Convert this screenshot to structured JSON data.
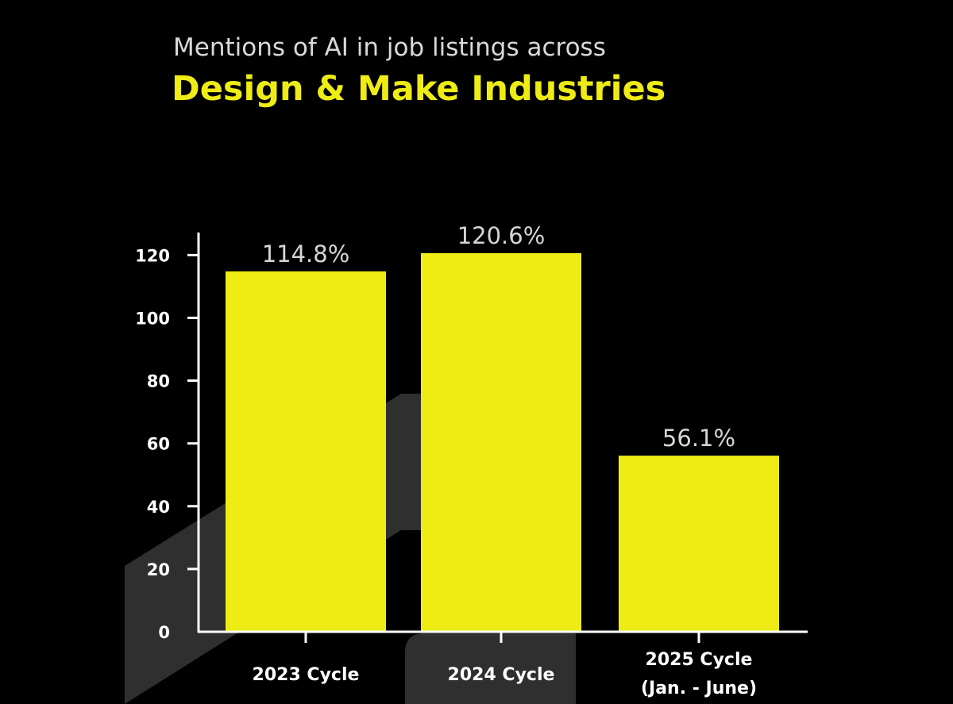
{
  "header": {
    "subtitle": "Mentions of AI in job listings across",
    "title": "Design & Make Industries"
  },
  "colors": {
    "background": "#000000",
    "bar": "#eeec14",
    "title": "#eeec14",
    "axis": "#ffffff",
    "decor": "#2f2f2f"
  },
  "chart_data": {
    "type": "bar",
    "categories": [
      [
        "2023 Cycle"
      ],
      [
        "2024 Cycle"
      ],
      [
        "2025 Cycle",
        "(Jan. - June)"
      ]
    ],
    "values": [
      114.8,
      120.6,
      56.1
    ],
    "data_labels": [
      "114.8%",
      "120.6%",
      "56.1%"
    ],
    "yticks": [
      0,
      20,
      40,
      60,
      80,
      100,
      120
    ],
    "ylim": [
      0,
      120.6
    ],
    "grid": false,
    "legend": "none",
    "title": "Design & Make Industries",
    "subtitle": "Mentions of AI in job listings across"
  }
}
